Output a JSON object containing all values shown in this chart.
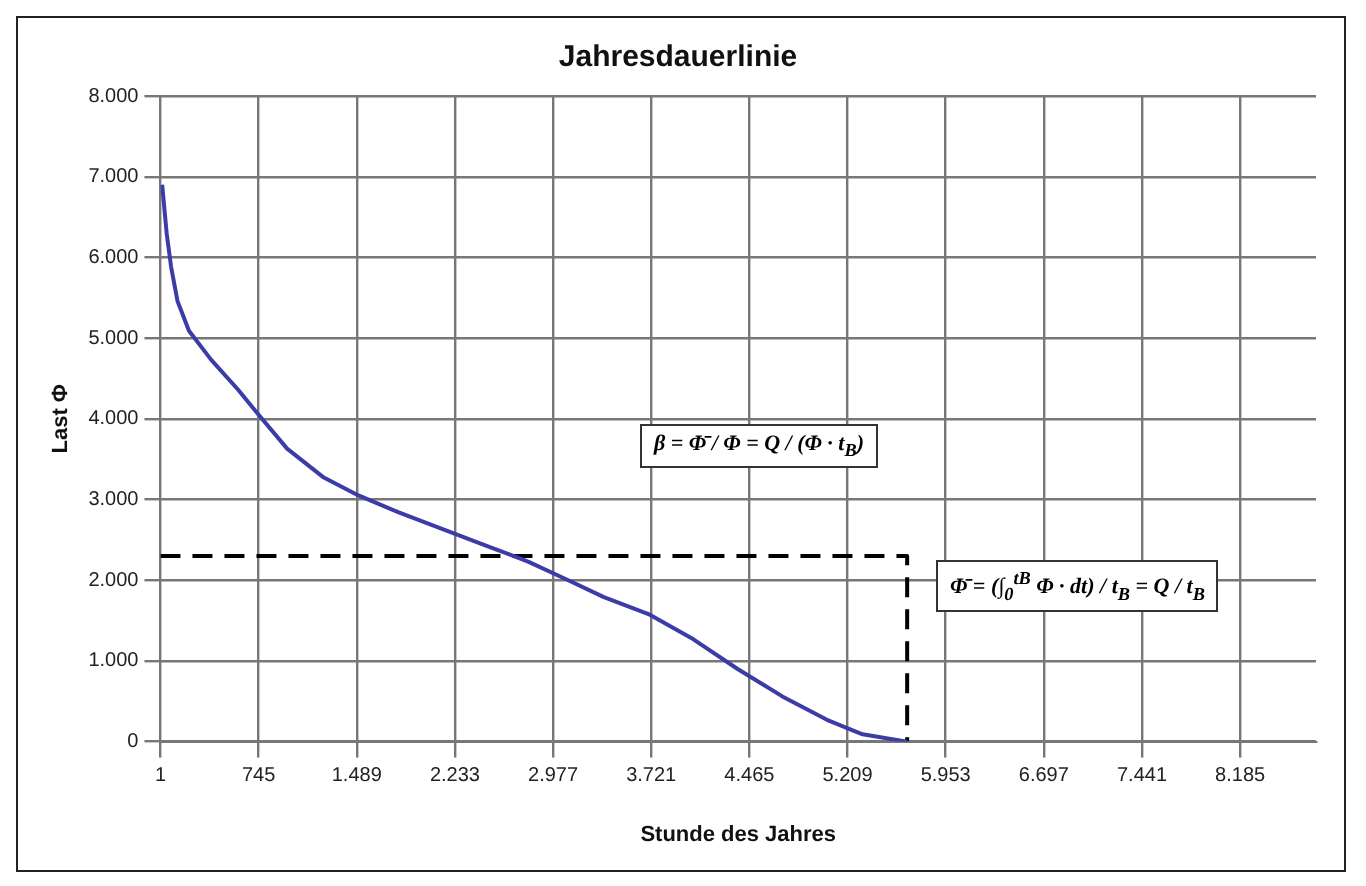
{
  "chart_data": {
    "type": "line",
    "title": "Jahresdauerlinie",
    "xlabel": "Stunde des Jahres",
    "ylabel": "Last Φ",
    "annotations": [
      "β = Φ̄ / Φ = Q / (Φ · t$_{B}$)",
      "Φ̄ = (∫$_{0}$$^{tB}$ Φ · dt) / t$_{B}$ = Q / t$_{B}$"
    ],
    "xlim": [
      1,
      8760
    ],
    "xticks": [
      1,
      745,
      {
        "value": 1489,
        "label": "1.489"
      },
      {
        "value": 2233,
        "label": "2.233"
      },
      {
        "value": 2977,
        "label": "2.977"
      },
      {
        "value": 3721,
        "label": "3.721"
      },
      {
        "value": 4465,
        "label": "4.465"
      },
      {
        "value": 5209,
        "label": "5.209"
      },
      {
        "value": 5953,
        "label": "5.953"
      },
      {
        "value": 6697,
        "label": "6.697"
      },
      {
        "value": 7441,
        "label": "7.441"
      },
      {
        "value": 8185,
        "label": "8.185"
      }
    ],
    "ylim": [
      0,
      8000
    ],
    "yticks": [
      0,
      {
        "value": 1000,
        "label": "1.000"
      },
      {
        "value": 2000,
        "label": "2.000"
      },
      {
        "value": 3000,
        "label": "3.000"
      },
      {
        "value": 4000,
        "label": "4.000"
      },
      {
        "value": 5000,
        "label": "5.000"
      },
      {
        "value": 6000,
        "label": "6.000"
      },
      {
        "value": 7000,
        "label": "7.000"
      },
      {
        "value": 8000,
        "label": "8.000"
      }
    ],
    "grid": true,
    "legend": false,
    "marker": "none",
    "series": [
      {
        "color": "#3c3ca8",
        "line_style": "solid",
        "x": [
          14,
          48,
          82,
          130,
          217,
          386,
          590,
          745,
          961,
          1232,
          1502,
          1807,
          2145,
          2483,
          2788,
          3092,
          3362,
          3700,
          4038,
          4376,
          4715,
          5053,
          5323,
          5661
        ],
        "values": [
          6900,
          6300,
          5880,
          5460,
          5090,
          4730,
          4360,
          4050,
          3630,
          3280,
          3050,
          2840,
          2630,
          2420,
          2230,
          2000,
          1790,
          1580,
          1270,
          900,
          560,
          270,
          90,
          0
        ]
      },
      {
        "color": "#000000",
        "line_style": "dashed",
        "x": [
          1,
          5661,
          5661
        ],
        "values": [
          2300,
          2300,
          0
        ]
      }
    ]
  }
}
